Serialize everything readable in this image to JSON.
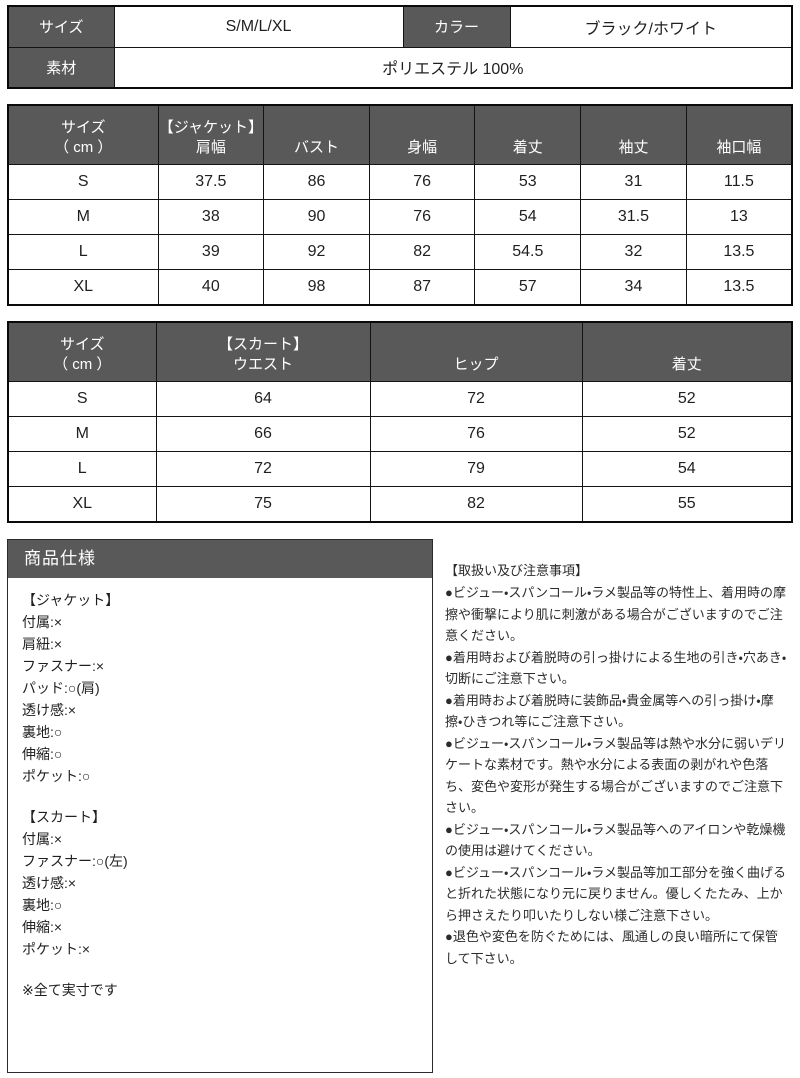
{
  "colors": {
    "header_bg": "#595959",
    "border": "#000000",
    "text": "#1f1f1f"
  },
  "info_table": {
    "size_label": "サイズ",
    "size_value": "S/M/L/XL",
    "color_label": "カラー",
    "color_value": "ブラック/ホワイト",
    "material_label": "素材",
    "material_value": "ポリエステル 100%"
  },
  "jacket_table": {
    "headers": [
      [
        "サイズ",
        "（ cm ）"
      ],
      [
        "【ジャケット】",
        "肩幅"
      ],
      "バスト",
      "身幅",
      "着丈",
      "袖丈",
      "袖口幅"
    ],
    "rows": [
      [
        "S",
        "37.5",
        "86",
        "76",
        "53",
        "31",
        "11.5"
      ],
      [
        "M",
        "38",
        "90",
        "76",
        "54",
        "31.5",
        "13"
      ],
      [
        "L",
        "39",
        "92",
        "82",
        "54.5",
        "32",
        "13.5"
      ],
      [
        "XL",
        "40",
        "98",
        "87",
        "57",
        "34",
        "13.5"
      ]
    ]
  },
  "skirt_table": {
    "headers": [
      [
        "サイズ",
        "（ cm ）"
      ],
      [
        "【スカート】",
        "ウエスト"
      ],
      "ヒップ",
      "着丈"
    ],
    "rows": [
      [
        "S",
        "64",
        "72",
        "52"
      ],
      [
        "M",
        "66",
        "76",
        "52"
      ],
      [
        "L",
        "72",
        "79",
        "54"
      ],
      [
        "XL",
        "75",
        "82",
        "55"
      ]
    ]
  },
  "spec_box": {
    "title": "商品仕様",
    "lines": [
      "【ジャケット】",
      "付属:×",
      "肩紐:×",
      "ファスナー:×",
      "パッド:○(肩)",
      "透け感:×",
      "裏地:○",
      "伸縮:○",
      "ポケット:○",
      "",
      "【スカート】",
      "付属:×",
      "ファスナー:○(左)",
      "透け感:×",
      "裏地:○",
      "伸縮:×",
      "ポケット:×",
      "",
      "※全て実寸です"
    ]
  },
  "notes": {
    "title": "【取扱い及び注意事項】",
    "items": [
      "●ビジュー・スパンコール・ラメ製品等の特性上、着用時の摩擦や衝撃により肌に刺激がある場合がございますのでご注意ください。",
      "●着用時および着脱時の引っ掛けによる生地の引き・穴あき・切断にご注意下さい。",
      "●着用時および着脱時に装飾品・貴金属等への引っ掛け・摩擦・ひきつれ等にご注意下さい。",
      "●ビジュー・スパンコール・ラメ製品等は熱や水分に弱いデリケートな素材です。熱や水分による表面の剥がれや色落ち、変色や変形が発生する場合がございますのでご注意下さい。",
      "●ビジュー・スパンコール・ラメ製品等へのアイロンや乾燥機の使用は避けてください。",
      "●ビジュー・スパンコール・ラメ製品等加工部分を強く曲げると折れた状態になり元に戻りません。優しくたたみ、上から押さえたり叩いたりしない様ご注意下さい。",
      "●退色や変色を防ぐためには、風通しの良い暗所にて保管して下さい。"
    ]
  }
}
